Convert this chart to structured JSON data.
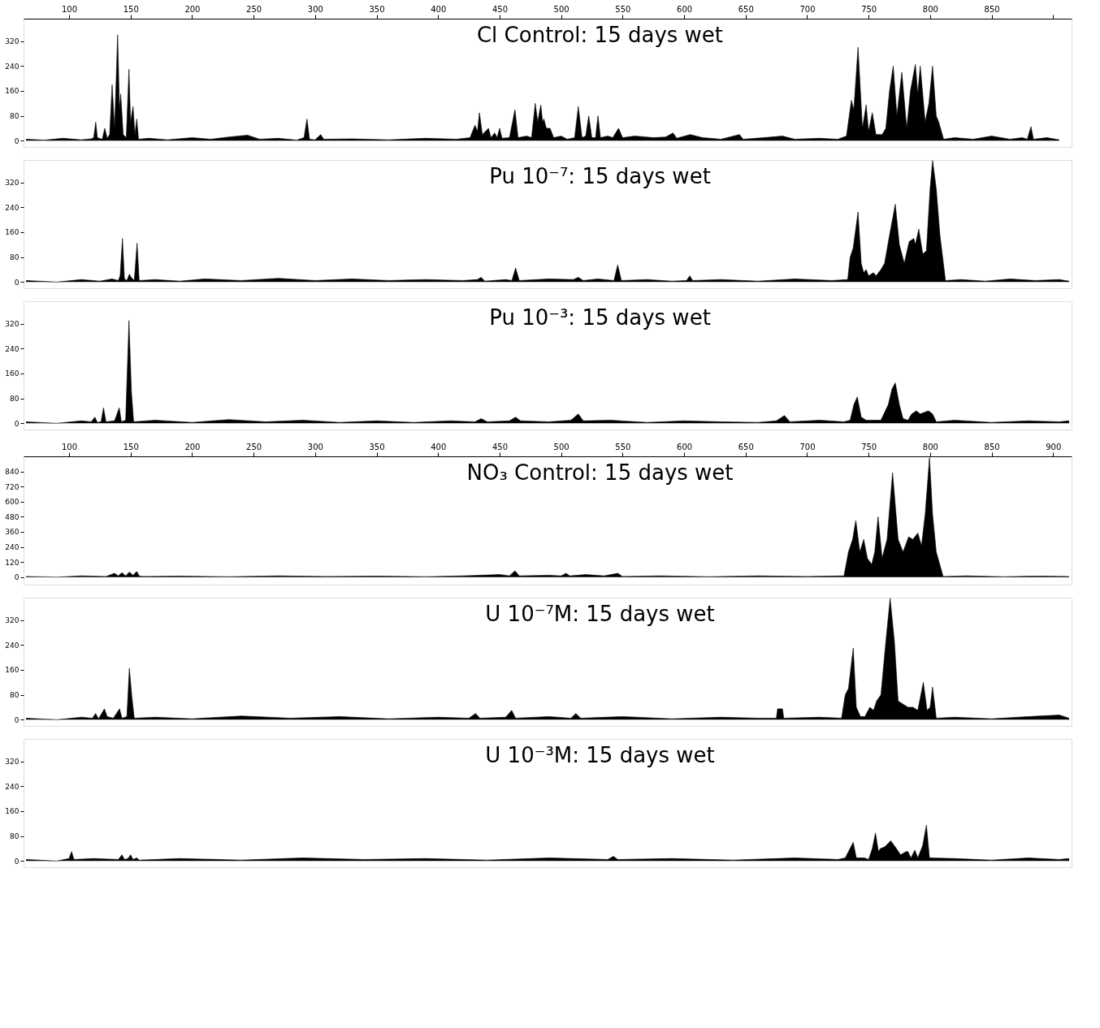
{
  "chart_data": [
    {
      "type": "area",
      "title": "Cl Control: 15 days wet",
      "color": "#000000",
      "xlim": [
        63,
        915
      ],
      "xticks": [
        100,
        150,
        200,
        250,
        300,
        350,
        400,
        450,
        500,
        550,
        600,
        650,
        700,
        750,
        800,
        850,
        {
          "value": 900,
          "label": null
        }
      ],
      "ylim": [
        -20,
        392
      ],
      "yticks": [
        0,
        80,
        160,
        240,
        320
      ],
      "x": [
        65,
        80,
        95,
        110,
        118,
        120,
        121.7,
        123,
        127,
        129,
        131,
        133,
        135,
        137,
        139.5,
        141,
        142,
        144,
        146.5,
        148.7,
        150,
        152,
        153.5,
        155,
        156.5,
        165,
        180,
        200,
        215,
        230,
        245,
        255,
        270,
        285,
        291,
        293.4,
        295.5,
        300,
        304.6,
        307,
        330,
        360,
        390,
        415,
        426,
        430,
        432,
        433.6,
        436,
        441,
        443,
        446,
        448,
        450,
        452,
        458,
        462.5,
        465,
        472,
        476,
        479,
        481,
        483.5,
        485,
        486,
        488,
        491,
        494,
        500,
        505,
        511,
        514,
        517,
        520,
        522.5,
        525,
        528,
        530,
        532,
        538,
        542,
        546.7,
        550,
        560,
        575,
        585,
        591,
        594,
        605,
        615,
        630,
        645,
        648,
        665,
        680,
        690,
        710,
        725,
        732,
        736,
        738,
        741.4,
        745,
        748,
        750,
        753,
        756,
        761,
        764,
        767,
        770,
        773,
        777,
        781,
        784,
        788,
        790,
        792,
        796,
        799,
        802,
        805,
        807,
        811,
        820,
        835,
        850,
        865,
        875,
        879,
        882,
        884,
        895,
        905
      ],
      "values": [
        5,
        2,
        8,
        3,
        6,
        10,
        60,
        10,
        5,
        40,
        8,
        20,
        180,
        40,
        340,
        100,
        150,
        20,
        10,
        230,
        60,
        110,
        20,
        70,
        5,
        8,
        3,
        10,
        5,
        12,
        18,
        5,
        8,
        2,
        10,
        70,
        5,
        3,
        20,
        5,
        6,
        3,
        8,
        5,
        10,
        50,
        30,
        90,
        20,
        40,
        10,
        25,
        10,
        40,
        8,
        10,
        100,
        10,
        15,
        10,
        120,
        60,
        115,
        60,
        70,
        40,
        40,
        10,
        15,
        5,
        10,
        110,
        10,
        15,
        80,
        10,
        10,
        80,
        10,
        15,
        10,
        40,
        10,
        15,
        10,
        12,
        25,
        8,
        20,
        10,
        5,
        20,
        5,
        10,
        15,
        5,
        8,
        5,
        15,
        130,
        100,
        300,
        40,
        115,
        30,
        90,
        20,
        20,
        40,
        160,
        240,
        80,
        220,
        40,
        160,
        245,
        150,
        240,
        60,
        120,
        240,
        80,
        60,
        5,
        10,
        5,
        15,
        5,
        10,
        5,
        45,
        5,
        10,
        3
      ]
    },
    {
      "type": "area",
      "title": "Pu 10⁻⁷: 15 days wet",
      "color": "#000000",
      "xlim": [
        63,
        915
      ],
      "tick_labels": "y",
      "ylim": [
        -20,
        392
      ],
      "yticks": [
        0,
        80,
        160,
        240,
        320
      ],
      "x": [
        65,
        90,
        110,
        125,
        135,
        140,
        141.5,
        143.4,
        145,
        147,
        149,
        150.5,
        153,
        155.3,
        157,
        170,
        190,
        210,
        240,
        270,
        300,
        330,
        360,
        390,
        420,
        432,
        435,
        438,
        455,
        460,
        463,
        466,
        490,
        510,
        514,
        518,
        530,
        543,
        546,
        549,
        570,
        590,
        602,
        604.6,
        607,
        630,
        660,
        690,
        720,
        733,
        735,
        737.5,
        741.4,
        744,
        746,
        748,
        750,
        754,
        756,
        760,
        763,
        767,
        771.7,
        775,
        779,
        783,
        786.8,
        788,
        790.8,
        794,
        797,
        800,
        802,
        805,
        808,
        812.5,
        825,
        845,
        865,
        885,
        905,
        913
      ],
      "values": [
        5,
        0,
        8,
        3,
        10,
        5,
        20,
        140,
        10,
        5,
        25,
        15,
        5,
        125,
        5,
        8,
        3,
        10,
        5,
        12,
        5,
        10,
        5,
        8,
        5,
        8,
        15,
        3,
        8,
        5,
        45,
        5,
        10,
        8,
        15,
        5,
        10,
        5,
        55,
        5,
        8,
        3,
        5,
        20,
        5,
        8,
        3,
        10,
        5,
        8,
        80,
        110,
        225,
        60,
        30,
        40,
        20,
        30,
        20,
        40,
        60,
        150,
        250,
        120,
        60,
        130,
        140,
        120,
        170,
        90,
        100,
        300,
        390,
        300,
        150,
        5,
        8,
        3,
        10,
        5,
        8,
        3
      ]
    },
    {
      "type": "area",
      "title": "Pu 10⁻³: 15 days wet",
      "color": "#000000",
      "xlim": [
        63,
        915
      ],
      "tick_labels": "y",
      "ylim": [
        -20,
        392
      ],
      "yticks": [
        0,
        80,
        160,
        240,
        320
      ],
      "x": [
        65,
        90,
        110,
        118,
        121,
        123,
        126,
        128,
        130,
        137,
        140.8,
        142.5,
        146,
        148.7,
        150.7,
        152.5,
        170,
        200,
        230,
        260,
        290,
        320,
        350,
        380,
        410,
        430,
        435,
        440,
        458,
        463,
        467,
        490,
        508,
        514,
        518,
        540,
        570,
        600,
        630,
        660,
        675,
        681.6,
        686,
        710,
        730,
        735,
        738,
        740.8,
        744,
        748,
        760,
        766,
        769,
        771.7,
        775,
        778,
        782,
        785,
        788.8,
        792,
        795,
        798.7,
        802,
        805,
        820,
        850,
        880,
        905,
        913
      ],
      "values": [
        5,
        0,
        8,
        5,
        20,
        3,
        5,
        50,
        5,
        8,
        50,
        5,
        10,
        330,
        100,
        5,
        10,
        3,
        12,
        5,
        10,
        3,
        8,
        3,
        8,
        5,
        15,
        5,
        8,
        20,
        8,
        5,
        10,
        30,
        8,
        10,
        3,
        8,
        5,
        3,
        8,
        25,
        5,
        10,
        5,
        10,
        60,
        85,
        20,
        10,
        10,
        60,
        110,
        130,
        60,
        15,
        10,
        30,
        40,
        30,
        35,
        40,
        30,
        5,
        10,
        3,
        8,
        5,
        8
      ]
    },
    {
      "type": "area",
      "title": "NO₃ Control: 15 days wet",
      "color": "#000000",
      "xlim": [
        63,
        915
      ],
      "xticks": [
        100,
        150,
        200,
        250,
        300,
        350,
        400,
        450,
        500,
        550,
        600,
        650,
        700,
        750,
        800,
        850,
        900
      ],
      "ylim": [
        -60,
        960
      ],
      "yticks": [
        0,
        120,
        240,
        360,
        480,
        600,
        720,
        840
      ],
      "x": [
        65,
        90,
        110,
        130,
        137,
        140,
        143,
        146,
        149,
        152,
        155,
        157,
        160,
        190,
        230,
        270,
        310,
        350,
        390,
        420,
        450,
        458,
        462.5,
        466,
        490,
        500,
        504,
        507,
        520,
        535,
        546,
        550,
        580,
        620,
        660,
        700,
        730,
        733.6,
        737,
        739.6,
        742.9,
        746,
        749,
        752.5,
        755,
        757.7,
        761,
        765,
        769.5,
        774,
        778,
        782.5,
        786,
        790,
        793,
        796,
        799.5,
        802,
        805,
        810.6,
        830,
        860,
        890,
        913
      ],
      "values": [
        5,
        0,
        10,
        5,
        30,
        10,
        35,
        10,
        40,
        15,
        45,
        10,
        5,
        8,
        3,
        10,
        5,
        8,
        3,
        10,
        20,
        10,
        50,
        10,
        15,
        10,
        30,
        10,
        20,
        10,
        30,
        5,
        10,
        3,
        10,
        5,
        10,
        200,
        300,
        450,
        200,
        300,
        150,
        100,
        200,
        480,
        150,
        300,
        830,
        300,
        200,
        320,
        300,
        350,
        250,
        500,
        950,
        500,
        200,
        5,
        10,
        3,
        8,
        5
      ]
    },
    {
      "type": "area",
      "title": "U 10⁻⁷M: 15 days wet",
      "color": "#000000",
      "xlim": [
        63,
        915
      ],
      "tick_labels": "y",
      "ylim": [
        -20,
        392
      ],
      "yticks": [
        0,
        80,
        160,
        240,
        320
      ],
      "x": [
        65,
        90,
        110,
        119,
        121.5,
        124,
        128.7,
        131,
        136,
        141,
        143,
        147,
        149,
        151,
        153,
        170,
        200,
        240,
        280,
        320,
        360,
        400,
        425,
        430.5,
        434,
        455,
        459.8,
        463,
        490,
        508,
        512,
        516,
        550,
        590,
        630,
        660,
        675,
        676,
        680,
        681,
        710,
        728,
        731,
        733.6,
        737.5,
        740,
        743.4,
        747,
        751,
        754,
        756.5,
        760,
        764,
        767.5,
        771,
        774,
        778,
        782,
        786,
        790,
        794.5,
        797.5,
        800,
        802,
        805,
        820,
        850,
        880,
        905,
        913
      ],
      "values": [
        5,
        0,
        8,
        5,
        20,
        3,
        35,
        10,
        5,
        35,
        5,
        10,
        165,
        75,
        5,
        8,
        3,
        12,
        5,
        10,
        3,
        8,
        5,
        20,
        5,
        8,
        30,
        5,
        10,
        5,
        20,
        5,
        10,
        3,
        8,
        5,
        5,
        35,
        35,
        5,
        8,
        5,
        80,
        100,
        230,
        40,
        10,
        10,
        40,
        30,
        60,
        80,
        250,
        390,
        250,
        60,
        50,
        40,
        40,
        30,
        120,
        30,
        40,
        105,
        5,
        8,
        3,
        10,
        15,
        5
      ]
    },
    {
      "type": "area",
      "title": "U 10⁻³M: 15 days wet",
      "color": "#000000",
      "xlim": [
        63,
        915
      ],
      "tick_labels": "y",
      "ylim": [
        -20,
        392
      ],
      "yticks": [
        0,
        80,
        160,
        240,
        320
      ],
      "x": [
        65,
        90,
        100,
        102,
        104,
        120,
        140,
        143,
        145,
        148,
        150,
        152,
        155,
        157,
        190,
        240,
        290,
        340,
        390,
        440,
        490,
        538,
        542.6,
        546,
        590,
        640,
        690,
        725,
        731,
        733.6,
        737.5,
        740,
        742,
        746.6,
        750,
        753,
        755.6,
        758,
        759.6,
        763,
        768,
        772.6,
        776,
        780.5,
        782,
        784.4,
        787.6,
        790,
        794,
        797,
        799.5,
        820,
        850,
        880,
        905,
        913
      ],
      "values": [
        5,
        0,
        8,
        30,
        5,
        8,
        5,
        20,
        5,
        8,
        20,
        5,
        10,
        3,
        8,
        3,
        10,
        5,
        8,
        3,
        10,
        5,
        15,
        5,
        8,
        3,
        10,
        5,
        10,
        30,
        60,
        10,
        10,
        10,
        5,
        40,
        90,
        30,
        40,
        45,
        65,
        40,
        20,
        30,
        30,
        10,
        35,
        10,
        50,
        115,
        10,
        8,
        3,
        10,
        5,
        8
      ]
    }
  ]
}
